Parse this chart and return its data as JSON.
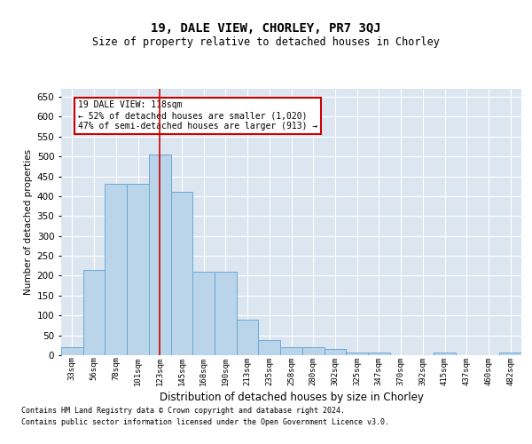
{
  "title1": "19, DALE VIEW, CHORLEY, PR7 3QJ",
  "title2": "Size of property relative to detached houses in Chorley",
  "xlabel": "Distribution of detached houses by size in Chorley",
  "ylabel": "Number of detached properties",
  "categories": [
    "33sqm",
    "56sqm",
    "78sqm",
    "101sqm",
    "123sqm",
    "145sqm",
    "168sqm",
    "190sqm",
    "213sqm",
    "235sqm",
    "258sqm",
    "280sqm",
    "302sqm",
    "325sqm",
    "347sqm",
    "370sqm",
    "392sqm",
    "415sqm",
    "437sqm",
    "460sqm",
    "482sqm"
  ],
  "values": [
    20,
    215,
    430,
    430,
    505,
    410,
    210,
    210,
    90,
    38,
    20,
    20,
    15,
    7,
    7,
    0,
    0,
    7,
    0,
    0,
    7
  ],
  "bar_color": "#bad4ea",
  "bar_edge_color": "#6aaad4",
  "vline_color": "#cc0000",
  "vline_x_idx": 4,
  "annotation_text": "19 DALE VIEW: 118sqm\n← 52% of detached houses are smaller (1,020)\n47% of semi-detached houses are larger (913) →",
  "annotation_box_color": "#ffffff",
  "annotation_box_edge": "#cc0000",
  "ylim": [
    0,
    670
  ],
  "yticks": [
    0,
    50,
    100,
    150,
    200,
    250,
    300,
    350,
    400,
    450,
    500,
    550,
    600,
    650
  ],
  "background_color": "#dce6f1",
  "footer_line1": "Contains HM Land Registry data © Crown copyright and database right 2024.",
  "footer_line2": "Contains public sector information licensed under the Open Government Licence v3.0."
}
